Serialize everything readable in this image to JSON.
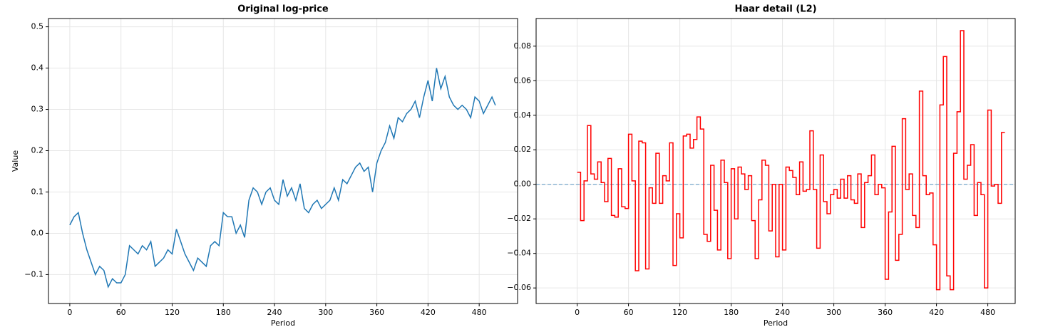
{
  "chart_data": [
    {
      "type": "line",
      "title": "Original log-price",
      "xlabel": "Period",
      "ylabel": "Value",
      "color": "#1f77b4",
      "grid": true,
      "xlim": [
        -25,
        525
      ],
      "ylim": [
        -0.17,
        0.52
      ],
      "xticks": [
        0,
        60,
        120,
        180,
        240,
        300,
        360,
        420,
        480
      ],
      "yticks": [
        {
          "value": -0.1,
          "label": "−0.1"
        },
        {
          "value": 0,
          "label": "0.0"
        },
        0.1,
        0.2,
        0.3,
        0.4,
        0.5
      ],
      "x": [
        0,
        5,
        10,
        15,
        20,
        25,
        30,
        35,
        40,
        45,
        50,
        55,
        60,
        65,
        70,
        75,
        80,
        85,
        90,
        95,
        100,
        105,
        110,
        115,
        120,
        125,
        130,
        135,
        140,
        145,
        150,
        155,
        160,
        165,
        170,
        175,
        180,
        185,
        190,
        195,
        200,
        205,
        210,
        215,
        220,
        225,
        230,
        235,
        240,
        245,
        250,
        255,
        260,
        265,
        270,
        275,
        280,
        285,
        290,
        295,
        300,
        305,
        310,
        315,
        320,
        325,
        330,
        335,
        340,
        345,
        350,
        355,
        360,
        365,
        370,
        375,
        380,
        385,
        390,
        395,
        400,
        405,
        410,
        415,
        420,
        425,
        430,
        435,
        440,
        445,
        450,
        455,
        460,
        465,
        470,
        475,
        480,
        485,
        490,
        495,
        499
      ],
      "values": [
        0.02,
        0.04,
        0.05,
        0.0,
        -0.04,
        -0.07,
        -0.1,
        -0.08,
        -0.09,
        -0.13,
        -0.11,
        -0.12,
        -0.12,
        -0.1,
        -0.03,
        -0.04,
        -0.05,
        -0.03,
        -0.04,
        -0.02,
        -0.08,
        -0.07,
        -0.06,
        -0.04,
        -0.05,
        0.01,
        -0.02,
        -0.05,
        -0.07,
        -0.09,
        -0.06,
        -0.07,
        -0.08,
        -0.03,
        -0.02,
        -0.03,
        0.05,
        0.04,
        0.04,
        0.0,
        0.02,
        -0.01,
        0.08,
        0.11,
        0.1,
        0.07,
        0.1,
        0.11,
        0.08,
        0.07,
        0.13,
        0.09,
        0.11,
        0.08,
        0.12,
        0.06,
        0.05,
        0.07,
        0.08,
        0.06,
        0.07,
        0.08,
        0.11,
        0.08,
        0.13,
        0.12,
        0.14,
        0.16,
        0.17,
        0.15,
        0.16,
        0.1,
        0.17,
        0.2,
        0.22,
        0.26,
        0.23,
        0.28,
        0.27,
        0.29,
        0.3,
        0.32,
        0.28,
        0.33,
        0.37,
        0.32,
        0.4,
        0.35,
        0.38,
        0.33,
        0.31,
        0.3,
        0.31,
        0.3,
        0.28,
        0.33,
        0.32,
        0.29,
        0.31,
        0.33,
        0.31
      ]
    },
    {
      "type": "step",
      "title": "Haar detail (L2)",
      "xlabel": "Period",
      "color": "#ff0000",
      "grid": true,
      "reference_line": 0,
      "reference_color": "#1f77b4",
      "xlim": [
        -48,
        512
      ],
      "ylim": [
        -0.069,
        0.096
      ],
      "xticks": [
        0,
        60,
        120,
        180,
        240,
        300,
        360,
        420,
        480
      ],
      "yticks": [
        {
          "value": -0.06,
          "label": "−0.06"
        },
        {
          "value": -0.04,
          "label": "−0.04"
        },
        {
          "value": -0.02,
          "label": "−0.02"
        },
        {
          "value": 0,
          "label": "0.00"
        },
        0.02,
        0.04,
        0.06,
        0.08
      ],
      "x": [
        0,
        4,
        8,
        12,
        16,
        20,
        24,
        28,
        32,
        36,
        40,
        44,
        48,
        52,
        56,
        60,
        64,
        68,
        72,
        76,
        80,
        84,
        88,
        92,
        96,
        100,
        104,
        108,
        112,
        116,
        120,
        124,
        128,
        132,
        136,
        140,
        144,
        148,
        152,
        156,
        160,
        164,
        168,
        172,
        176,
        180,
        184,
        188,
        192,
        196,
        200,
        204,
        208,
        212,
        216,
        220,
        224,
        228,
        232,
        236,
        240,
        244,
        248,
        252,
        256,
        260,
        264,
        268,
        272,
        276,
        280,
        284,
        288,
        292,
        296,
        300,
        304,
        308,
        312,
        316,
        320,
        324,
        328,
        332,
        336,
        340,
        344,
        348,
        352,
        356,
        360,
        364,
        368,
        372,
        376,
        380,
        384,
        388,
        392,
        396,
        400,
        404,
        408,
        412,
        416,
        420,
        424,
        428,
        432,
        436,
        440,
        444,
        448,
        452,
        456,
        460,
        464,
        468,
        472,
        476,
        480,
        484,
        488,
        492,
        496
      ],
      "values": [
        0.007,
        -0.021,
        0.002,
        0.034,
        0.006,
        0.003,
        0.013,
        0.001,
        -0.01,
        0.015,
        -0.018,
        -0.019,
        0.009,
        -0.013,
        -0.014,
        0.029,
        0.002,
        -0.05,
        0.025,
        0.024,
        -0.049,
        -0.002,
        -0.011,
        0.018,
        -0.011,
        0.005,
        0.002,
        0.024,
        -0.047,
        -0.017,
        -0.031,
        0.028,
        0.029,
        0.021,
        0.026,
        0.039,
        0.032,
        -0.029,
        -0.033,
        0.011,
        -0.015,
        -0.038,
        0.014,
        0.001,
        -0.043,
        0.009,
        -0.02,
        0.01,
        0.006,
        -0.003,
        0.005,
        -0.021,
        -0.043,
        -0.009,
        0.014,
        0.011,
        -0.027,
        0.0,
        -0.042,
        0.0,
        -0.038,
        0.01,
        0.008,
        0.004,
        -0.006,
        0.013,
        -0.004,
        -0.003,
        0.031,
        -0.003,
        -0.037,
        0.017,
        -0.01,
        -0.017,
        -0.006,
        -0.003,
        -0.008,
        0.003,
        -0.008,
        0.005,
        -0.009,
        -0.011,
        0.006,
        -0.025,
        0.001,
        0.005,
        0.017,
        -0.006,
        0.0,
        -0.002,
        -0.055,
        -0.016,
        0.022,
        -0.044,
        -0.029,
        0.038,
        -0.003,
        0.006,
        -0.018,
        -0.025,
        0.054,
        0.005,
        -0.006,
        -0.005,
        -0.035,
        -0.061,
        0.046,
        0.074,
        -0.053,
        -0.061,
        0.018,
        0.042,
        0.089,
        0.003,
        0.011,
        0.023,
        -0.018,
        0.001,
        -0.006,
        -0.06,
        0.043,
        -0.001,
        0.0,
        -0.011,
        0.03
      ]
    }
  ]
}
